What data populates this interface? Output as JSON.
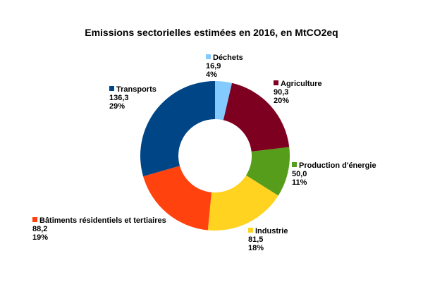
{
  "chart_data": {
    "type": "pie",
    "variant": "donut",
    "title": "Emissions sectorielles estimées en 2016, en MtCO2eq",
    "slices": [
      {
        "name": "Déchets",
        "value": 16.9,
        "value_label": "16,9",
        "percent_label": "4%",
        "color": "#83caff"
      },
      {
        "name": "Agriculture",
        "value": 90.3,
        "value_label": "90,3",
        "percent_label": "20%",
        "color": "#7e0021"
      },
      {
        "name": "Production d'énergie",
        "value": 50.0,
        "value_label": "50,0",
        "percent_label": "11%",
        "color": "#579d1c"
      },
      {
        "name": "Industrie",
        "value": 81.5,
        "value_label": "81,5",
        "percent_label": "18%",
        "color": "#ffd320"
      },
      {
        "name": "Bâtiments résidentiels et tertiaires",
        "value": 88.2,
        "value_label": "88,2",
        "percent_label": "19%",
        "color": "#ff420e"
      },
      {
        "name": "Transports",
        "value": 136.3,
        "value_label": "136,3",
        "percent_label": "29%",
        "color": "#004586"
      }
    ],
    "legend": "none"
  }
}
